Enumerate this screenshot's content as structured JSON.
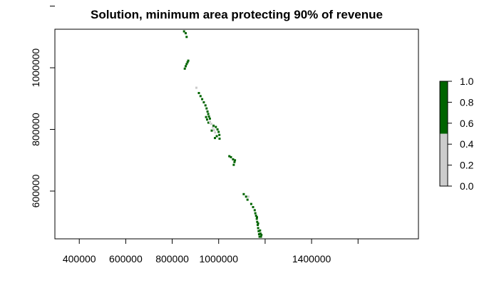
{
  "chart_data": {
    "type": "heatmap",
    "title": "Solution, minimum area protecting 90% of revenue",
    "xlabel": "",
    "ylabel": "",
    "xlim": [
      295000,
      1860000
    ],
    "ylim": [
      445000,
      1125000
    ],
    "x_ticks": [
      400000,
      600000,
      800000,
      1000000,
      1200000,
      1400000,
      1600000
    ],
    "x_tick_labels": [
      "400000",
      "600000",
      "800000",
      "1000000",
      "",
      "1400000",
      ""
    ],
    "y_ticks": [
      600000,
      800000,
      1000000,
      1200000
    ],
    "y_tick_labels": [
      "600000",
      "800000",
      "1000000",
      ""
    ],
    "legend": {
      "position": "right",
      "ticks": [
        0.0,
        0.2,
        0.4,
        0.6,
        0.8,
        1.0
      ],
      "tick_labels": [
        "0.0",
        "0.2",
        "0.4",
        "0.6",
        "0.8",
        "1.0"
      ],
      "bins": [
        {
          "from": 0.0,
          "to": 0.5,
          "color": "#cccccc"
        },
        {
          "from": 0.5,
          "to": 1.0,
          "color": "#006400"
        }
      ]
    },
    "colors": {
      "selected": "#006400",
      "not_selected": "#cccccc"
    },
    "cells": [
      {
        "x": 851000,
        "y": 1118000,
        "v": 1
      },
      {
        "x": 858000,
        "y": 1112000,
        "v": 1
      },
      {
        "x": 862000,
        "y": 1100000,
        "v": 1
      },
      {
        "x": 858000,
        "y": 1005000,
        "v": 1
      },
      {
        "x": 862000,
        "y": 1012000,
        "v": 1
      },
      {
        "x": 866000,
        "y": 1018000,
        "v": 1
      },
      {
        "x": 869000,
        "y": 1023000,
        "v": 1
      },
      {
        "x": 854000,
        "y": 997000,
        "v": 1
      },
      {
        "x": 904000,
        "y": 935000,
        "v": 0
      },
      {
        "x": 915000,
        "y": 918000,
        "v": 1
      },
      {
        "x": 922000,
        "y": 908000,
        "v": 1
      },
      {
        "x": 929000,
        "y": 898000,
        "v": 1
      },
      {
        "x": 936000,
        "y": 888000,
        "v": 1
      },
      {
        "x": 943000,
        "y": 878000,
        "v": 1
      },
      {
        "x": 948000,
        "y": 868000,
        "v": 1
      },
      {
        "x": 952000,
        "y": 858000,
        "v": 1
      },
      {
        "x": 955000,
        "y": 850000,
        "v": 1
      },
      {
        "x": 958000,
        "y": 842000,
        "v": 1
      },
      {
        "x": 962000,
        "y": 835000,
        "v": 1
      },
      {
        "x": 950000,
        "y": 832000,
        "v": 1
      },
      {
        "x": 956000,
        "y": 822000,
        "v": 1
      },
      {
        "x": 946000,
        "y": 840000,
        "v": 1
      },
      {
        "x": 962000,
        "y": 825000,
        "v": 0
      },
      {
        "x": 968000,
        "y": 818000,
        "v": 0
      },
      {
        "x": 975000,
        "y": 806000,
        "v": 0
      },
      {
        "x": 980000,
        "y": 798000,
        "v": 0
      },
      {
        "x": 985000,
        "y": 790000,
        "v": 0
      },
      {
        "x": 978000,
        "y": 812000,
        "v": 1
      },
      {
        "x": 988000,
        "y": 808000,
        "v": 1
      },
      {
        "x": 995000,
        "y": 800000,
        "v": 1
      },
      {
        "x": 1000000,
        "y": 792000,
        "v": 1
      },
      {
        "x": 1003000,
        "y": 782000,
        "v": 1
      },
      {
        "x": 992000,
        "y": 778000,
        "v": 1
      },
      {
        "x": 984000,
        "y": 772000,
        "v": 1
      },
      {
        "x": 1004000,
        "y": 770000,
        "v": 1
      },
      {
        "x": 970000,
        "y": 796000,
        "v": 1
      },
      {
        "x": 1046000,
        "y": 713000,
        "v": 1
      },
      {
        "x": 1053000,
        "y": 710000,
        "v": 1
      },
      {
        "x": 1062000,
        "y": 703000,
        "v": 1
      },
      {
        "x": 1068000,
        "y": 694000,
        "v": 1
      },
      {
        "x": 1065000,
        "y": 685000,
        "v": 1
      },
      {
        "x": 1070000,
        "y": 700000,
        "v": 1
      },
      {
        "x": 1108000,
        "y": 590000,
        "v": 1
      },
      {
        "x": 1118000,
        "y": 582000,
        "v": 1
      },
      {
        "x": 1124000,
        "y": 572000,
        "v": 1
      },
      {
        "x": 1128000,
        "y": 582000,
        "v": 0
      },
      {
        "x": 1140000,
        "y": 558000,
        "v": 1
      },
      {
        "x": 1148000,
        "y": 548000,
        "v": 1
      },
      {
        "x": 1155000,
        "y": 538000,
        "v": 1
      },
      {
        "x": 1158000,
        "y": 528000,
        "v": 1
      },
      {
        "x": 1161000,
        "y": 520000,
        "v": 1
      },
      {
        "x": 1164000,
        "y": 510000,
        "v": 1
      },
      {
        "x": 1166000,
        "y": 500000,
        "v": 1
      },
      {
        "x": 1168000,
        "y": 490000,
        "v": 1
      },
      {
        "x": 1170000,
        "y": 480000,
        "v": 1
      },
      {
        "x": 1172000,
        "y": 470000,
        "v": 1
      },
      {
        "x": 1174000,
        "y": 460000,
        "v": 1
      },
      {
        "x": 1176000,
        "y": 452000,
        "v": 1
      },
      {
        "x": 1178000,
        "y": 472000,
        "v": 1
      },
      {
        "x": 1180000,
        "y": 462000,
        "v": 1
      },
      {
        "x": 1182000,
        "y": 452000,
        "v": 1
      },
      {
        "x": 1184000,
        "y": 458000,
        "v": 1
      },
      {
        "x": 1170000,
        "y": 495000,
        "v": 1
      },
      {
        "x": 1165000,
        "y": 515000,
        "v": 1
      }
    ]
  }
}
